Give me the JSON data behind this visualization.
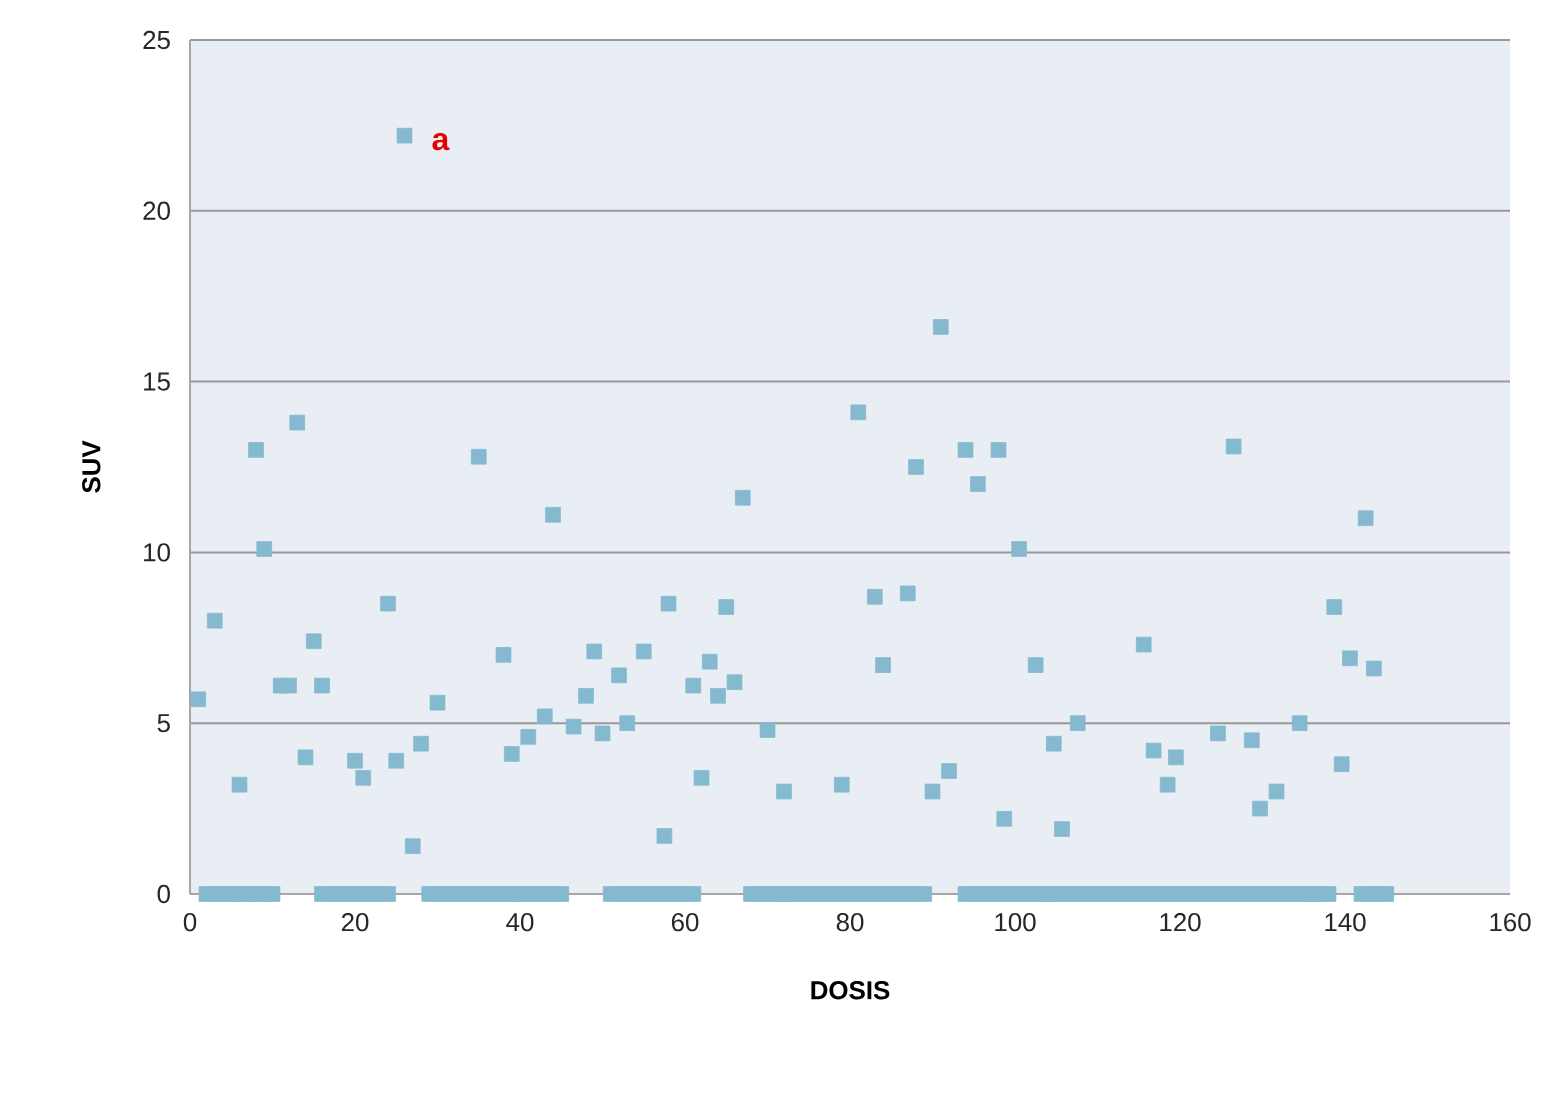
{
  "chart_data": {
    "type": "scatter",
    "xlabel": "DOSIS",
    "ylabel": "SUV",
    "marker": "square",
    "grid": "y",
    "color": "#85b9cf",
    "x": [
      1,
      3,
      6,
      8,
      9,
      11,
      12,
      16,
      13,
      15,
      14,
      20,
      21,
      24,
      25,
      26,
      27,
      28,
      30,
      35,
      44,
      38,
      39,
      41,
      43,
      46.5,
      48,
      49,
      50,
      52,
      53,
      55,
      58,
      57.5,
      65,
      63,
      61,
      66,
      64,
      62,
      67,
      70,
      72,
      79,
      81,
      83,
      87,
      84,
      88,
      91,
      90,
      92,
      94,
      98,
      95.5,
      98.7,
      100.5,
      102.5,
      104.7,
      107.6,
      105.7,
      115.6,
      116.8,
      119.5,
      118.5,
      124.6,
      126.5,
      128.7,
      129.7,
      131.7,
      134.5,
      138.7,
      139.6,
      140.6,
      143.5,
      142.5,
      2,
      3,
      4,
      5,
      6,
      7,
      8,
      9,
      10,
      16,
      17,
      18,
      19,
      20,
      21,
      22,
      23,
      24,
      29,
      30,
      31,
      32,
      33,
      34,
      35,
      36,
      37,
      38,
      39,
      40,
      41,
      42,
      43,
      44,
      45,
      51,
      52,
      53,
      54,
      55,
      56,
      57,
      58,
      59,
      60,
      61,
      68,
      69,
      70,
      71,
      72,
      73,
      74,
      75,
      76,
      77,
      78,
      79,
      80,
      81,
      82,
      83,
      84,
      85,
      86,
      87,
      88,
      89,
      94,
      95,
      96,
      97,
      98,
      99,
      100,
      101,
      102,
      103,
      104,
      105,
      106,
      107,
      108,
      109,
      110,
      111,
      112,
      113,
      114,
      115,
      116,
      117,
      118,
      119,
      120,
      121,
      122,
      123,
      124,
      125,
      126,
      127,
      128,
      129,
      130,
      131,
      132,
      133,
      134,
      135,
      136,
      137,
      138,
      142,
      143,
      144,
      145
    ],
    "values": [
      5.7,
      8.0,
      3.2,
      13.0,
      10.1,
      6.1,
      6.1,
      6.1,
      13.8,
      7.4,
      4.0,
      3.9,
      3.4,
      8.5,
      3.9,
      22.2,
      1.4,
      4.4,
      5.6,
      12.8,
      11.1,
      7.0,
      4.1,
      4.6,
      5.2,
      4.9,
      5.8,
      7.1,
      4.7,
      6.4,
      5.0,
      7.1,
      8.5,
      1.7,
      8.4,
      6.8,
      6.1,
      6.2,
      5.8,
      3.4,
      11.6,
      4.8,
      3.0,
      3.2,
      14.1,
      8.7,
      8.8,
      6.7,
      12.5,
      16.6,
      3.0,
      3.6,
      13.0,
      13.0,
      12.0,
      2.2,
      10.1,
      6.7,
      4.4,
      5.0,
      1.9,
      7.3,
      4.2,
      4.0,
      3.2,
      4.7,
      13.1,
      4.5,
      2.5,
      3.0,
      5.0,
      8.4,
      3.8,
      6.9,
      6.6,
      11.0,
      0,
      0,
      0,
      0,
      0,
      0,
      0,
      0,
      0,
      0,
      0,
      0,
      0,
      0,
      0,
      0,
      0,
      0,
      0,
      0,
      0,
      0,
      0,
      0,
      0,
      0,
      0,
      0,
      0,
      0,
      0,
      0,
      0,
      0,
      0,
      0,
      0,
      0,
      0,
      0,
      0,
      0,
      0,
      0,
      0,
      0,
      0,
      0,
      0,
      0,
      0,
      0,
      0,
      0,
      0,
      0,
      0,
      0,
      0,
      0,
      0,
      0,
      0,
      0,
      0,
      0,
      0,
      0,
      0,
      0,
      0,
      0,
      0,
      0,
      0,
      0,
      0,
      0,
      0,
      0,
      0,
      0,
      0,
      0,
      0,
      0,
      0,
      0,
      0,
      0,
      0,
      0,
      0,
      0,
      0,
      0,
      0,
      0,
      0,
      0,
      0,
      0,
      0,
      0,
      0,
      0,
      0,
      0,
      0,
      0,
      0,
      0,
      0,
      0,
      0,
      0,
      0
    ],
    "xlim": [
      0,
      160
    ],
    "xticks": [
      0,
      20,
      40,
      60,
      80,
      100,
      120,
      140,
      160
    ],
    "ylim": [
      0,
      25
    ],
    "yticks": [
      0,
      5,
      10,
      15,
      20,
      25
    ],
    "annotations": [
      {
        "text": "a",
        "x": 26,
        "y": 22.2
      }
    ]
  }
}
